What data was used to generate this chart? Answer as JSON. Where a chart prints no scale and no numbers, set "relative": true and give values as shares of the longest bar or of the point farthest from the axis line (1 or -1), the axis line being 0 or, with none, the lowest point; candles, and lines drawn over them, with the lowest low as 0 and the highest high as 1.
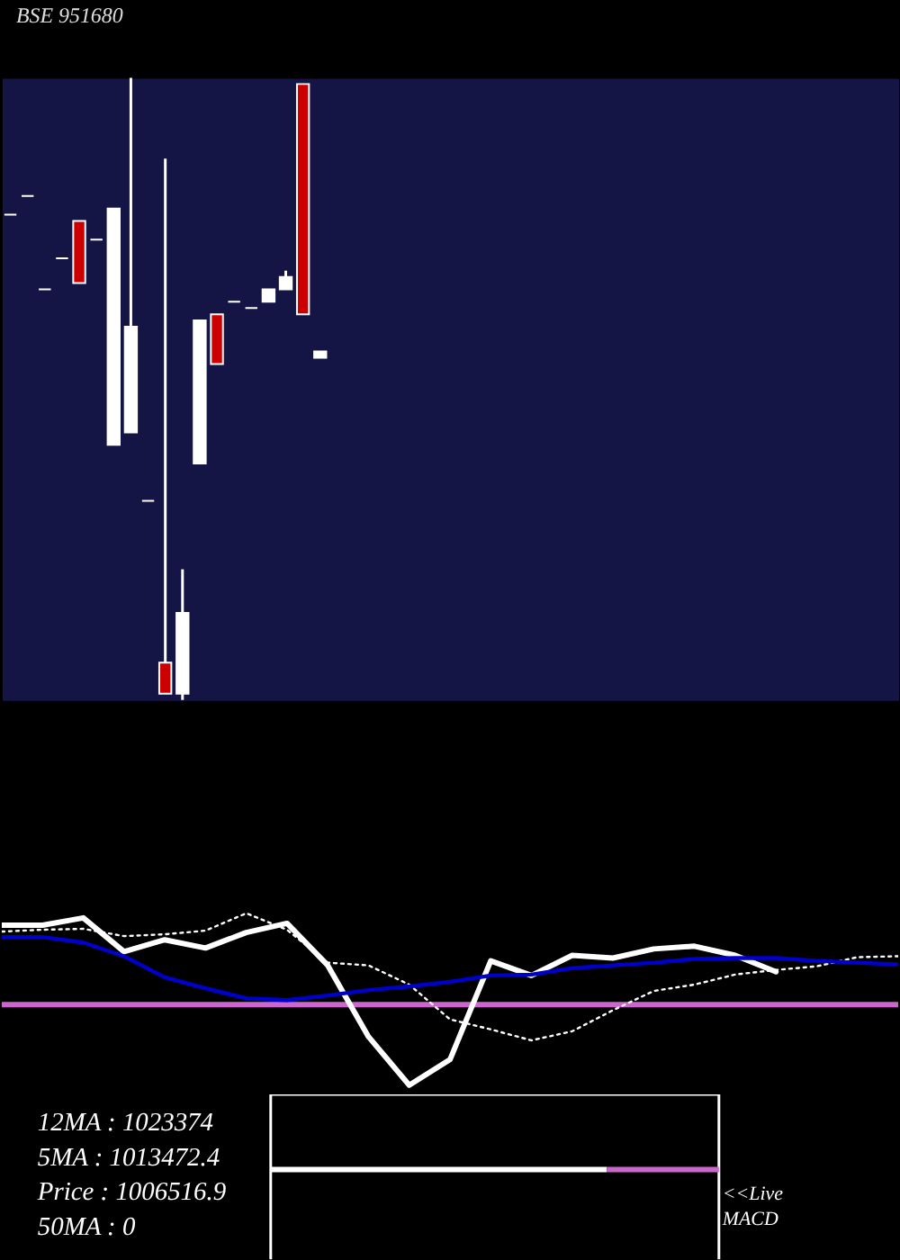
{
  "chart_data": [
    {
      "type": "candlestick",
      "title": "BSE 951680",
      "relative": true,
      "categories": [
        null,
        null,
        null,
        null,
        null,
        null,
        null,
        null,
        null,
        null,
        null,
        null,
        null,
        null,
        null,
        null,
        null,
        null,
        null
      ],
      "ohlc": [
        [
          0.78,
          0.78,
          0.78,
          0.78
        ],
        [
          0.81,
          0.81,
          0.81,
          0.81
        ],
        [
          0.66,
          0.66,
          0.66,
          0.66
        ],
        [
          0.71,
          0.71,
          0.71,
          0.71
        ],
        [
          0.77,
          0.77,
          0.67,
          0.67
        ],
        [
          0.74,
          0.74,
          0.74,
          0.74
        ],
        [
          0.41,
          0.79,
          0.41,
          0.79
        ],
        [
          0.43,
          1.0,
          0.43,
          0.6
        ],
        [
          0.32,
          0.32,
          0.32,
          0.32
        ],
        [
          0.06,
          0.87,
          0.01,
          0.01
        ],
        [
          0.01,
          0.21,
          0,
          0.14
        ],
        [
          0.38,
          0.61,
          0.38,
          0.61
        ],
        [
          0.62,
          0.62,
          0.54,
          0.54
        ],
        [
          0.64,
          0.64,
          0.64,
          0.64
        ],
        [
          0.63,
          0.63,
          0.63,
          0.63
        ],
        [
          0.64,
          0.66,
          0.64,
          0.66
        ],
        [
          0.66,
          0.69,
          0.66,
          0.68
        ],
        [
          0.99,
          0.99,
          0.62,
          0.62
        ],
        [
          0.55,
          0.56,
          0.55,
          0.56
        ]
      ],
      "colors": [
        "#ffffff",
        "#ffffff",
        "#ffffff",
        "#ffffff",
        "#cc0000",
        "#ffffff",
        "#ffffff",
        "#ffffff",
        "#ffffff",
        "#cc0000",
        "#ffffff",
        "#ffffff",
        "#cc0000",
        "#ffffff",
        "#ffffff",
        "#ffffff",
        "#ffffff",
        "#cc0000",
        "#ffffff"
      ]
    },
    {
      "type": "line",
      "relative": true,
      "categories": [
        null,
        null,
        null,
        null,
        null,
        null,
        null,
        null,
        null,
        null,
        null,
        null,
        null,
        null,
        null,
        null,
        null,
        null,
        null,
        null,
        null,
        null,
        null
      ],
      "series": [
        {
          "color": "#ffffff",
          "values": [
            0.87,
            0.87,
            0.95,
            0.58,
            0.71,
            0.62,
            0.79,
            0.89,
            0.43,
            -0.35,
            -0.88,
            -0.6,
            0.48,
            0.32,
            0.54,
            0.51,
            0.61,
            0.64,
            0.54,
            0.36,
            null,
            null,
            null
          ]
        },
        {
          "color": "#ffffff",
          "line_style": "dotted",
          "values": [
            0.8,
            0.82,
            0.83,
            0.75,
            0.77,
            0.81,
            1.0,
            0.82,
            0.46,
            0.43,
            0.22,
            -0.16,
            -0.27,
            -0.39,
            -0.29,
            -0.06,
            0.15,
            0.22,
            0.33,
            0.38,
            0.42,
            0.52,
            0.53
          ]
        },
        {
          "color": "#0000cc",
          "values": [
            0.74,
            0.74,
            0.68,
            0.53,
            0.3,
            0.18,
            0.07,
            0.05,
            0.1,
            0.16,
            0.2,
            0.25,
            0.32,
            0.33,
            0.4,
            0.43,
            0.46,
            0.5,
            0.51,
            0.51,
            0.48,
            0.46,
            0.44
          ]
        }
      ],
      "ref_lines": [
        {
          "axis": "y",
          "value": 0,
          "color": "#cc66cc"
        }
      ]
    },
    {
      "type": "bar",
      "orientation": "horizontal",
      "stacked": true,
      "relative": true,
      "categories": [
        null
      ],
      "series": [
        {
          "color": "#ffffff",
          "values": [
            0.75
          ]
        },
        {
          "color": "#cc66cc",
          "values": [
            0.25
          ]
        }
      ],
      "annotations": [
        "12MA : 1023374",
        "5MA : 1013472.4",
        "Price : 1006516.9",
        "50MA : 0",
        "<<Live MACD"
      ]
    }
  ]
}
